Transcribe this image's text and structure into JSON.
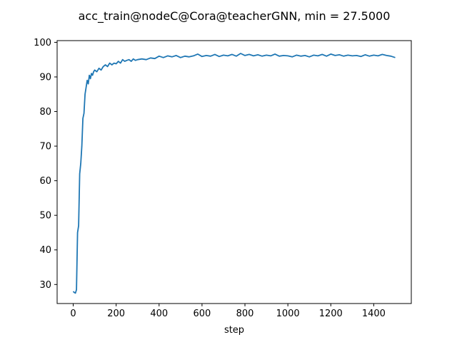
{
  "chart_data": {
    "type": "line",
    "title": "acc_train@nodeC@Cora@teacherGNN, min = 27.5000",
    "xlabel": "step",
    "ylabel": "",
    "xlim": [
      -75,
      1575
    ],
    "ylim": [
      24.5,
      100.5
    ],
    "xticks": [
      0,
      200,
      400,
      600,
      800,
      1000,
      1200,
      1400
    ],
    "yticks": [
      30,
      40,
      50,
      60,
      70,
      80,
      90,
      100
    ],
    "grid": false,
    "line_color": "#1f77b4",
    "series": [
      {
        "x": [
          0,
          5,
          10,
          15,
          20,
          25,
          30,
          35,
          40,
          45,
          50,
          55,
          60,
          65,
          70,
          75,
          80,
          85,
          90,
          95,
          100,
          110,
          120,
          130,
          140,
          150,
          160,
          170,
          180,
          190,
          200,
          210,
          220,
          230,
          240,
          250,
          260,
          270,
          280,
          290,
          300,
          320,
          340,
          360,
          380,
          400,
          420,
          440,
          460,
          480,
          500,
          520,
          540,
          560,
          580,
          600,
          620,
          640,
          660,
          680,
          700,
          720,
          740,
          760,
          780,
          800,
          820,
          840,
          860,
          880,
          900,
          920,
          940,
          960,
          980,
          1000,
          1020,
          1040,
          1060,
          1080,
          1100,
          1120,
          1140,
          1160,
          1180,
          1200,
          1220,
          1240,
          1260,
          1280,
          1300,
          1320,
          1340,
          1360,
          1380,
          1400,
          1420,
          1440,
          1460,
          1480,
          1500
        ],
        "y": [
          28.0,
          27.7,
          27.5,
          28.5,
          45.0,
          47.0,
          62.0,
          65.0,
          70.0,
          78.0,
          79.5,
          85.0,
          87.0,
          89.0,
          88.0,
          90.5,
          89.5,
          91.0,
          90.5,
          91.5,
          92.0,
          91.5,
          92.5,
          92.0,
          93.0,
          93.5,
          93.0,
          94.0,
          93.5,
          94.0,
          93.8,
          94.5,
          94.0,
          95.0,
          94.5,
          94.8,
          95.0,
          94.5,
          95.2,
          94.8,
          95.0,
          95.2,
          95.0,
          95.5,
          95.3,
          96.0,
          95.6,
          96.1,
          95.8,
          96.2,
          95.6,
          96.0,
          95.8,
          96.1,
          96.6,
          95.9,
          96.2,
          96.0,
          96.5,
          95.9,
          96.3,
          96.1,
          96.5,
          96.0,
          96.8,
          96.2,
          96.5,
          96.1,
          96.4,
          96.0,
          96.3,
          96.1,
          96.6,
          96.0,
          96.2,
          96.1,
          95.8,
          96.3,
          96.0,
          96.2,
          95.8,
          96.3,
          96.1,
          96.5,
          96.0,
          96.6,
          96.2,
          96.4,
          96.0,
          96.3,
          96.1,
          96.2,
          95.9,
          96.4,
          96.0,
          96.3,
          96.1,
          96.5,
          96.2,
          96.0,
          95.6
        ]
      }
    ]
  }
}
